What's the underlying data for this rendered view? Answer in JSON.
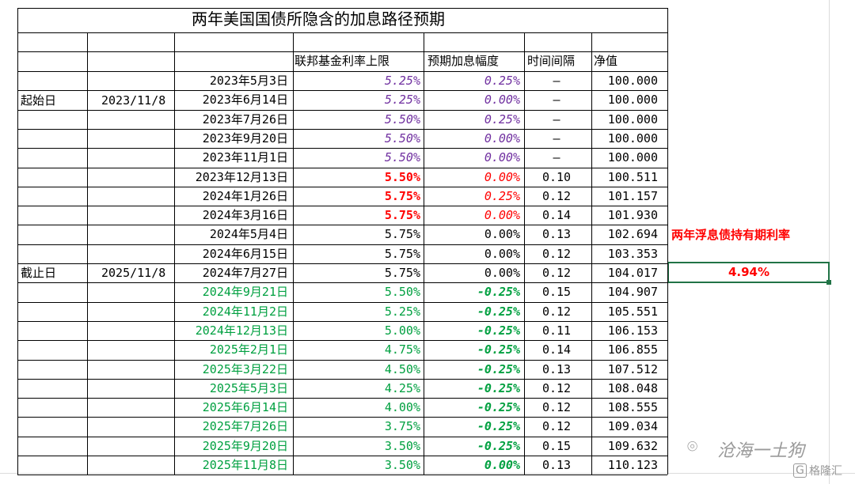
{
  "title": "两年美国国债所隐含的加息路径预期",
  "headers": {
    "fed_rate": "联邦基金利率上限",
    "hike": "预期加息幅度",
    "interval": "时间间隔",
    "nav": "净值"
  },
  "labels": {
    "start": "起始日",
    "start_date": "2023/11/8",
    "end": "截止日",
    "end_date": "2025/11/8"
  },
  "side": {
    "label": "两年浮息债持有期利率",
    "value": "4.94%"
  },
  "rows": [
    {
      "date": "2023年5月3日",
      "rate": "5.25%",
      "hike": "0.25%",
      "interval": "–",
      "nav": "100.000",
      "style": "purple"
    },
    {
      "date": "2023年6月14日",
      "rate": "5.25%",
      "hike": "0.00%",
      "interval": "–",
      "nav": "100.000",
      "style": "purple"
    },
    {
      "date": "2023年7月26日",
      "rate": "5.50%",
      "hike": "0.25%",
      "interval": "–",
      "nav": "100.000",
      "style": "purple"
    },
    {
      "date": "2023年9月20日",
      "rate": "5.50%",
      "hike": "0.00%",
      "interval": "–",
      "nav": "100.000",
      "style": "purple"
    },
    {
      "date": "2023年11月1日",
      "rate": "5.50%",
      "hike": "0.00%",
      "interval": "–",
      "nav": "100.000",
      "style": "purple"
    },
    {
      "date": "2023年12月13日",
      "rate": "5.50%",
      "hike": "0.00%",
      "interval": "0.10",
      "nav": "100.511",
      "style": "red"
    },
    {
      "date": "2024年1月26日",
      "rate": "5.75%",
      "hike": "0.25%",
      "interval": "0.12",
      "nav": "101.157",
      "style": "red"
    },
    {
      "date": "2024年3月16日",
      "rate": "5.75%",
      "hike": "0.00%",
      "interval": "0.14",
      "nav": "101.930",
      "style": "red"
    },
    {
      "date": "2024年5月4日",
      "rate": "5.75%",
      "hike": "0.00%",
      "interval": "0.13",
      "nav": "102.694",
      "style": "black"
    },
    {
      "date": "2024年6月15日",
      "rate": "5.75%",
      "hike": "0.00%",
      "interval": "0.12",
      "nav": "103.353",
      "style": "black"
    },
    {
      "date": "2024年7月27日",
      "rate": "5.75%",
      "hike": "0.00%",
      "interval": "0.12",
      "nav": "104.017",
      "style": "black"
    },
    {
      "date": "2024年9月21日",
      "rate": "5.50%",
      "hike": "-0.25%",
      "interval": "0.15",
      "nav": "104.907",
      "style": "green"
    },
    {
      "date": "2024年11月2日",
      "rate": "5.25%",
      "hike": "-0.25%",
      "interval": "0.12",
      "nav": "105.551",
      "style": "green"
    },
    {
      "date": "2024年12月13日",
      "rate": "5.00%",
      "hike": "-0.25%",
      "interval": "0.11",
      "nav": "106.153",
      "style": "green"
    },
    {
      "date": "2025年2月1日",
      "rate": "4.75%",
      "hike": "-0.25%",
      "interval": "0.14",
      "nav": "106.855",
      "style": "green"
    },
    {
      "date": "2025年3月22日",
      "rate": "4.50%",
      "hike": "-0.25%",
      "interval": "0.13",
      "nav": "107.512",
      "style": "green"
    },
    {
      "date": "2025年5月3日",
      "rate": "4.25%",
      "hike": "-0.25%",
      "interval": "0.12",
      "nav": "108.048",
      "style": "green"
    },
    {
      "date": "2025年6月14日",
      "rate": "4.00%",
      "hike": "-0.25%",
      "interval": "0.12",
      "nav": "108.555",
      "style": "green"
    },
    {
      "date": "2025年7月26日",
      "rate": "3.75%",
      "hike": "-0.25%",
      "interval": "0.12",
      "nav": "109.034",
      "style": "green"
    },
    {
      "date": "2025年9月20日",
      "rate": "3.50%",
      "hike": "-0.25%",
      "interval": "0.15",
      "nav": "109.632",
      "style": "green"
    },
    {
      "date": "2025年11月8日",
      "rate": "3.50%",
      "hike": "0.00%",
      "interval": "0.13",
      "nav": "110.123",
      "style": "green"
    }
  ],
  "watermark": {
    "text1": "沧海一土狗",
    "text2": "格隆汇"
  },
  "colors": {
    "purple": "#7030a0",
    "red": "#ff0000",
    "green": "#00a040",
    "selection": "#217346"
  }
}
